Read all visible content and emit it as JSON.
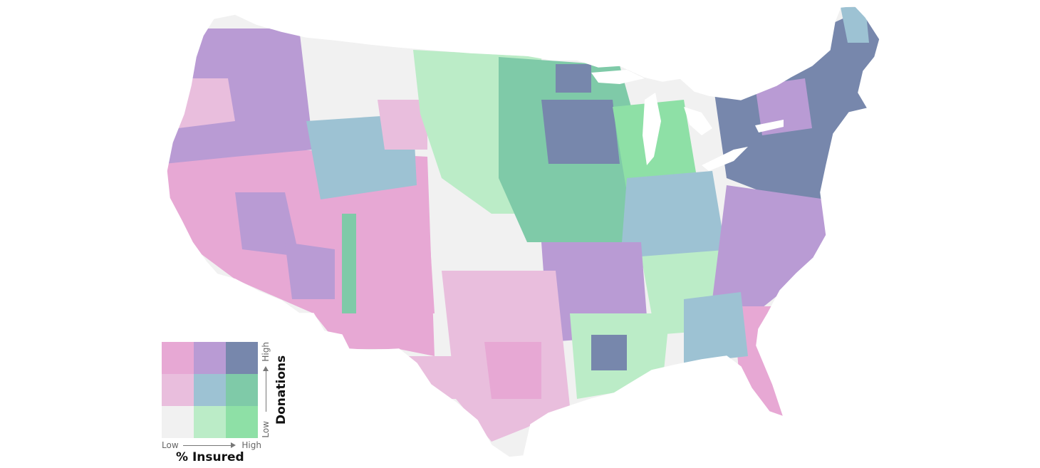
{
  "map": {
    "region": "Contiguous United States",
    "unit": "county",
    "style": "bivariate choropleth",
    "border_color": "#ffffff"
  },
  "legend": {
    "x_axis": {
      "title": "% Insured",
      "low": "Low",
      "high": "High"
    },
    "y_axis": {
      "title": "Donations",
      "low": "Low",
      "high": "High"
    },
    "colors": [
      [
        "#e7a8d4",
        "#b99bd4",
        "#7787ac"
      ],
      [
        "#e9bedd",
        "#9dc2d3",
        "#7fcaa8"
      ],
      [
        "#f1f1f1",
        "#bbecc7",
        "#8ee0a6"
      ]
    ]
  }
}
